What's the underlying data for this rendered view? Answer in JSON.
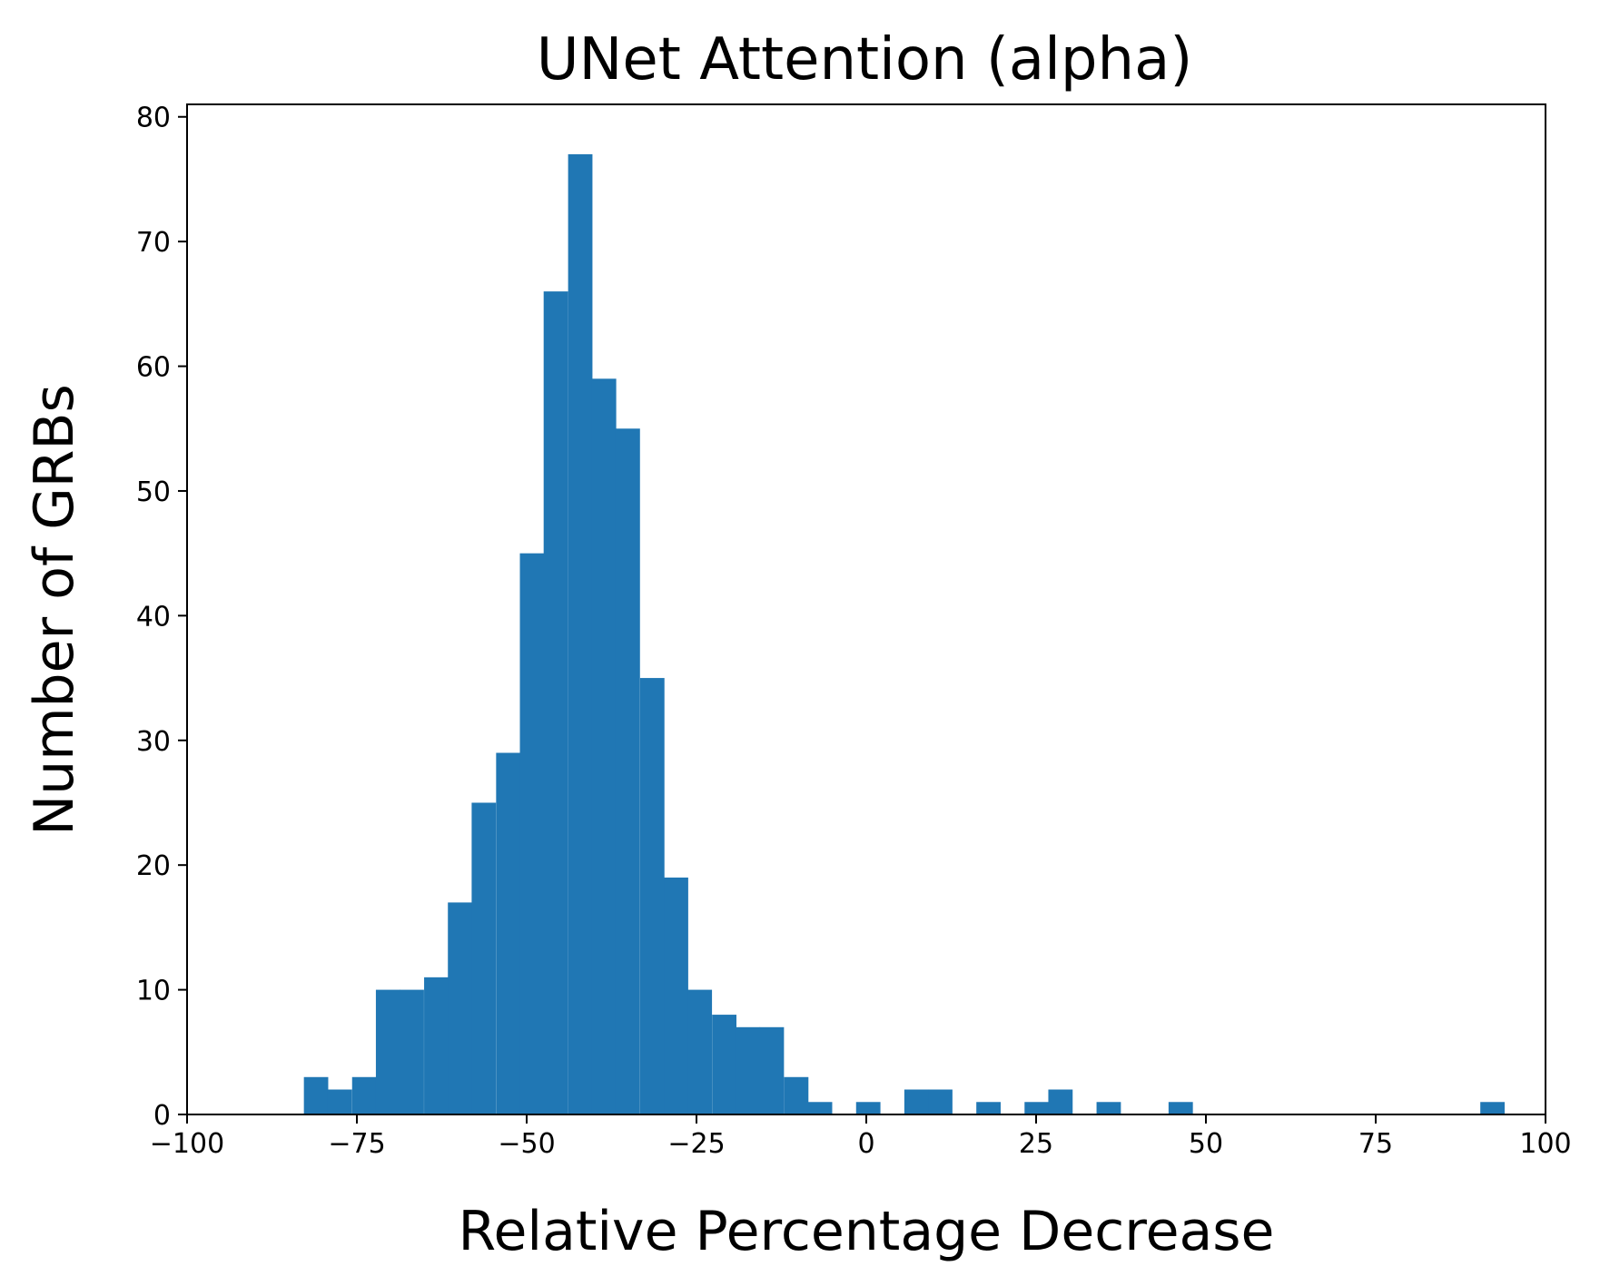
{
  "chart_data": {
    "type": "bar",
    "title": "UNet Attention (alpha)",
    "xlabel": "Relative Percentage Decrease",
    "ylabel": "Number of GRBs",
    "xlim": [
      -100,
      100
    ],
    "ylim": [
      0,
      81
    ],
    "xticks": [
      "−100",
      "−75",
      "−50",
      "−25",
      "0",
      "25",
      "50",
      "75",
      "100"
    ],
    "xtick_values": [
      -100,
      -75,
      -50,
      -25,
      0,
      25,
      50,
      75,
      100
    ],
    "yticks": [
      "0",
      "10",
      "20",
      "30",
      "40",
      "50",
      "60",
      "70",
      "80"
    ],
    "ytick_values": [
      0,
      10,
      20,
      30,
      40,
      50,
      60,
      70,
      80
    ],
    "bin_width": 3.53,
    "bins": [
      {
        "x0": -82.8,
        "count": 3
      },
      {
        "x0": -79.3,
        "count": 2
      },
      {
        "x0": -75.7,
        "count": 3
      },
      {
        "x0": -72.2,
        "count": 10
      },
      {
        "x0": -68.7,
        "count": 10
      },
      {
        "x0": -65.1,
        "count": 11
      },
      {
        "x0": -61.6,
        "count": 17
      },
      {
        "x0": -58.1,
        "count": 25
      },
      {
        "x0": -54.5,
        "count": 29
      },
      {
        "x0": -51.0,
        "count": 45
      },
      {
        "x0": -47.5,
        "count": 66
      },
      {
        "x0": -43.9,
        "count": 77
      },
      {
        "x0": -40.4,
        "count": 59
      },
      {
        "x0": -36.9,
        "count": 55
      },
      {
        "x0": -33.3,
        "count": 35
      },
      {
        "x0": -29.8,
        "count": 19
      },
      {
        "x0": -26.3,
        "count": 10
      },
      {
        "x0": -22.7,
        "count": 8
      },
      {
        "x0": -19.2,
        "count": 7
      },
      {
        "x0": -15.7,
        "count": 7
      },
      {
        "x0": -12.1,
        "count": 3
      },
      {
        "x0": -8.6,
        "count": 1
      },
      {
        "x0": -1.5,
        "count": 1
      },
      {
        "x0": 5.6,
        "count": 2
      },
      {
        "x0": 9.1,
        "count": 2
      },
      {
        "x0": 16.2,
        "count": 1
      },
      {
        "x0": 23.3,
        "count": 1
      },
      {
        "x0": 26.8,
        "count": 2
      },
      {
        "x0": 33.9,
        "count": 1
      },
      {
        "x0": 44.5,
        "count": 1
      },
      {
        "x0": 90.4,
        "count": 1
      }
    ],
    "color": "#2077b4",
    "grid": false,
    "legend": "none"
  }
}
